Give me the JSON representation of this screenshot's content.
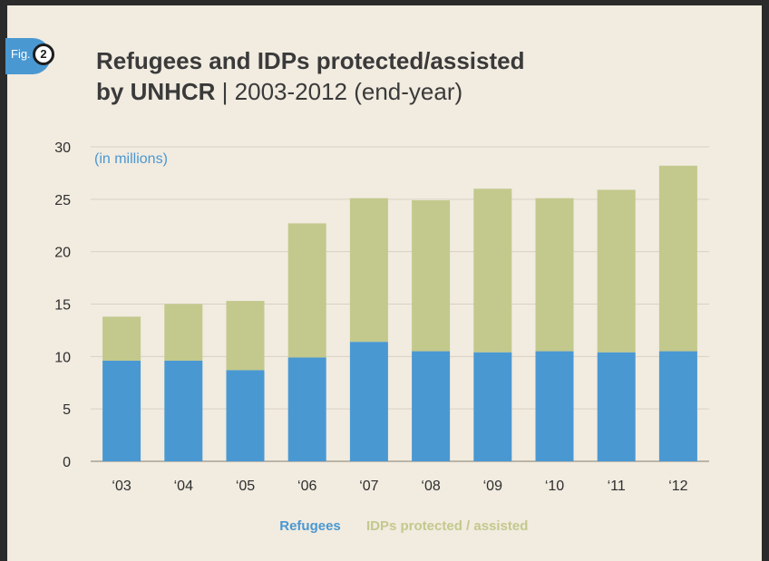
{
  "figure": {
    "fig_label": "Fig.",
    "fig_number": "2",
    "title_bold_line1": "Refugees and IDPs protected/assisted",
    "title_bold_line2": "by UNHCR",
    "title_separator": " | ",
    "title_light": "2003-2012 (end-year)"
  },
  "chart_data": {
    "type": "bar",
    "stacked": true,
    "unit_label": "(in millions)",
    "categories": [
      "‘03",
      "‘04",
      "‘05",
      "‘06",
      "‘07",
      "‘08",
      "‘09",
      "‘10",
      "‘11",
      "‘12"
    ],
    "series": [
      {
        "name": "Refugees",
        "color": "#4a98d2",
        "values": [
          9.6,
          9.6,
          8.7,
          9.9,
          11.4,
          10.5,
          10.4,
          10.5,
          10.4,
          10.5
        ]
      },
      {
        "name": "IDPs protected / assisted",
        "color": "#c3c98c",
        "values": [
          4.2,
          5.4,
          6.6,
          12.8,
          13.7,
          14.4,
          15.6,
          14.6,
          15.5,
          17.7
        ]
      }
    ],
    "ylim": [
      0,
      30
    ],
    "yticks": [
      0,
      5,
      10,
      15,
      20,
      25,
      30
    ],
    "grid": true,
    "legend_position": "bottom-center"
  }
}
